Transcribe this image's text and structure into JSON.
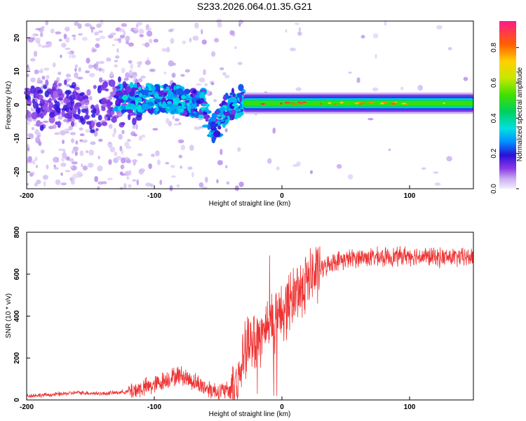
{
  "title": "S233.2026.064.01.35.G21",
  "chart_data": [
    {
      "type": "heatmap",
      "name": "spectrogram",
      "xlabel": "Height of straight line (km)",
      "ylabel": "Frequency (Hz)",
      "xlim": [
        -200,
        150
      ],
      "ylim": [
        -25,
        25
      ],
      "xticks": [
        -200,
        -100,
        0,
        100
      ],
      "xtick_labels": [
        "-200",
        "-100",
        "0",
        "100"
      ],
      "yticks": [
        -20,
        -10,
        0,
        10,
        20
      ],
      "ytick_labels": [
        "-20",
        "-10",
        "0",
        "10",
        "20"
      ],
      "colorbar": {
        "label": "Normalized spectral amplitude",
        "range": [
          0,
          0.95
        ],
        "ticks": [
          0,
          0.2,
          0.4,
          0.6,
          0.8
        ],
        "tick_labels": [
          "0.0",
          "0.2",
          "0.4",
          "0.6",
          "0.8"
        ]
      },
      "description_points": {
        "ridge_x_start": -30,
        "ridge_x_end": 150,
        "ridge_freq": 0.5,
        "ridge_amplitude": 0.55,
        "blob_region_x": [
          -130,
          -30
        ],
        "blob_amplitude_peak": 0.3,
        "noise_region_x": [
          -200,
          -110
        ]
      }
    },
    {
      "type": "line",
      "name": "snr",
      "xlabel": "Height of straight line (km)",
      "ylabel": "SNR (10 * v/v)",
      "xlim": [
        -200,
        150
      ],
      "ylim": [
        0,
        800
      ],
      "xticks": [
        -200,
        -100,
        0,
        100
      ],
      "xtick_labels": [
        "-200",
        "-100",
        "0",
        "100"
      ],
      "yticks": [
        0,
        200,
        400,
        600,
        800
      ],
      "ytick_labels": [
        "0",
        "200",
        "400",
        "600",
        "800"
      ],
      "color": "#ee3333",
      "trend": {
        "x": [
          -200,
          -180,
          -160,
          -140,
          -120,
          -100,
          -90,
          -80,
          -70,
          -60,
          -50,
          -40,
          -35,
          -30,
          -25,
          -20,
          -15,
          -10,
          -5,
          0,
          5,
          10,
          15,
          20,
          30,
          40,
          60,
          80,
          100,
          120,
          150
        ],
        "y": [
          20,
          25,
          35,
          30,
          40,
          70,
          100,
          120,
          90,
          60,
          40,
          45,
          90,
          200,
          260,
          300,
          320,
          380,
          380,
          420,
          460,
          500,
          540,
          570,
          620,
          660,
          680,
          680,
          690,
          680,
          680
        ]
      }
    }
  ]
}
